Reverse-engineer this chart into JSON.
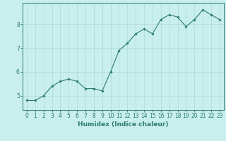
{
  "x": [
    0,
    1,
    2,
    3,
    4,
    5,
    6,
    7,
    8,
    9,
    10,
    11,
    12,
    13,
    14,
    15,
    16,
    17,
    18,
    19,
    20,
    21,
    22,
    23
  ],
  "y": [
    4.8,
    4.8,
    5.0,
    5.4,
    5.6,
    5.7,
    5.6,
    5.3,
    5.3,
    5.2,
    6.0,
    6.9,
    7.2,
    7.6,
    7.8,
    7.6,
    8.2,
    8.4,
    8.3,
    7.9,
    8.2,
    8.6,
    8.4,
    8.2
  ],
  "line_color": "#2e7d6e",
  "marker": "D",
  "marker_size": 1.8,
  "bg_color": "#c8eeee",
  "grid_color": "#b0d8d8",
  "xlabel": "Humidex (Indice chaleur)",
  "xlim": [
    -0.5,
    23.5
  ],
  "ylim": [
    4.4,
    8.9
  ],
  "yticks": [
    5,
    6,
    7,
    8
  ],
  "xtick_labels": [
    "0",
    "1",
    "2",
    "3",
    "4",
    "5",
    "6",
    "7",
    "8",
    "9",
    "10",
    "11",
    "12",
    "13",
    "14",
    "15",
    "16",
    "17",
    "18",
    "19",
    "20",
    "21",
    "22",
    "23"
  ],
  "label_fontsize": 6.5,
  "tick_fontsize": 5.5
}
